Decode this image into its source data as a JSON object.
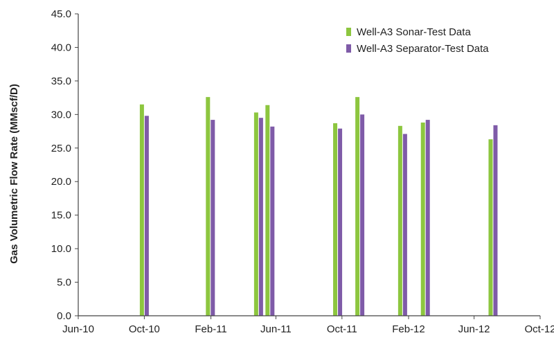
{
  "chart_data": {
    "type": "bar",
    "title": "",
    "xlabel": "",
    "ylabel": "Gas Volumetric Flow Rate (MMscf/D)",
    "ylim": [
      0,
      45
    ],
    "yticks": [
      "0.0",
      "5.0",
      "10.0",
      "15.0",
      "20.0",
      "25.0",
      "30.0",
      "35.0",
      "40.0",
      "45.0"
    ],
    "xlim": [
      "2010-06-01",
      "2012-10-01"
    ],
    "xticks": [
      {
        "date": "2010-06-01",
        "label": "Jun-10"
      },
      {
        "date": "2010-10-01",
        "label": "Oct-10"
      },
      {
        "date": "2011-02-01",
        "label": "Feb-11"
      },
      {
        "date": "2011-06-01",
        "label": "Jun-11"
      },
      {
        "date": "2011-10-01",
        "label": "Oct-11"
      },
      {
        "date": "2012-02-01",
        "label": "Feb-12"
      },
      {
        "date": "2012-06-01",
        "label": "Jun-12"
      },
      {
        "date": "2012-10-01",
        "label": "Oct-12"
      }
    ],
    "grid": false,
    "legend_position": "top-right",
    "series": [
      {
        "name": "Well-A3 Sonar-Test Data",
        "color": "#8dc63f",
        "points": [
          {
            "date": "2010-10-01",
            "value": 31.5
          },
          {
            "date": "2011-01-31",
            "value": 32.6
          },
          {
            "date": "2011-04-30",
            "value": 30.3
          },
          {
            "date": "2011-05-21",
            "value": 31.4
          },
          {
            "date": "2011-09-23",
            "value": 28.7
          },
          {
            "date": "2011-11-03",
            "value": 32.6
          },
          {
            "date": "2012-01-21",
            "value": 28.3
          },
          {
            "date": "2012-03-03",
            "value": 28.8
          },
          {
            "date": "2012-07-06",
            "value": 26.3
          }
        ]
      },
      {
        "name": "Well-A3 Separator-Test Data",
        "color": "#7f5ba8",
        "points": [
          {
            "date": "2010-10-01",
            "value": 29.8
          },
          {
            "date": "2011-01-31",
            "value": 29.2
          },
          {
            "date": "2011-04-30",
            "value": 29.5
          },
          {
            "date": "2011-05-21",
            "value": 28.2
          },
          {
            "date": "2011-09-23",
            "value": 27.9
          },
          {
            "date": "2011-11-03",
            "value": 30.0
          },
          {
            "date": "2012-01-21",
            "value": 27.1
          },
          {
            "date": "2012-03-03",
            "value": 29.2
          },
          {
            "date": "2012-07-06",
            "value": 28.4
          }
        ]
      }
    ]
  }
}
